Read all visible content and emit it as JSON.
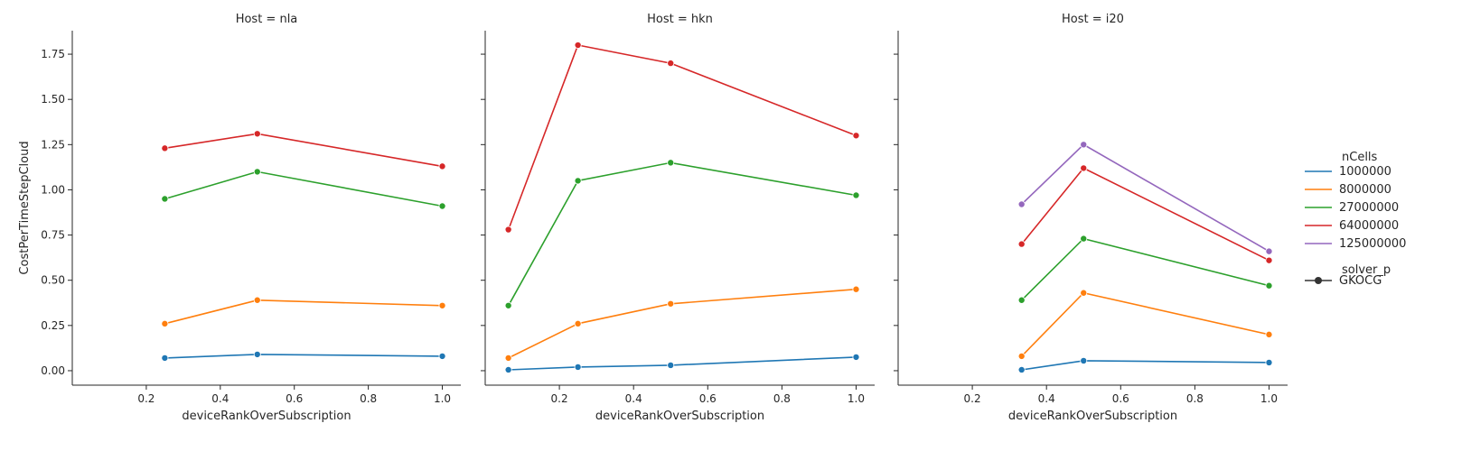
{
  "figure": {
    "legend_title": "nCells",
    "legend_style_title": "solver_p",
    "legend_placement": "right",
    "colors": [
      "#1f77b4",
      "#ff7f0e",
      "#2ca02c",
      "#d62728",
      "#9467bd"
    ]
  },
  "chart_data": [
    {
      "type": "line",
      "title": "Host = nla",
      "xlabel": "deviceRankOverSubscription",
      "ylabel": "CostPerTimeStepCloud",
      "xlim": [
        0.0,
        1.05
      ],
      "ylim": [
        -0.08,
        1.88
      ],
      "xticks": [
        0.2,
        0.4,
        0.6,
        0.8,
        1.0
      ],
      "xtick_labels": [
        "0.2",
        "0.4",
        "0.6",
        "0.8",
        "1.0"
      ],
      "yticks": [
        0.0,
        0.25,
        0.5,
        0.75,
        1.0,
        1.25,
        1.5,
        1.75
      ],
      "ytick_labels": [
        "0.00",
        "0.25",
        "0.50",
        "0.75",
        "1.00",
        "1.25",
        "1.50",
        "1.75"
      ],
      "grid": false,
      "series": [
        {
          "name": "1000000",
          "x": [
            0.25,
            0.5,
            1.0
          ],
          "y": [
            0.07,
            0.09,
            0.08
          ]
        },
        {
          "name": "8000000",
          "x": [
            0.25,
            0.5,
            1.0
          ],
          "y": [
            0.26,
            0.39,
            0.36
          ]
        },
        {
          "name": "27000000",
          "x": [
            0.25,
            0.5,
            1.0
          ],
          "y": [
            0.95,
            1.1,
            0.91
          ]
        },
        {
          "name": "64000000",
          "x": [
            0.25,
            0.5,
            1.0
          ],
          "y": [
            1.23,
            1.31,
            1.13
          ]
        }
      ]
    },
    {
      "type": "line",
      "title": "Host = hkn",
      "xlabel": "deviceRankOverSubscription",
      "ylabel": "",
      "xlim": [
        0.0,
        1.05
      ],
      "ylim": [
        -0.08,
        1.88
      ],
      "xticks": [
        0.2,
        0.4,
        0.6,
        0.8,
        1.0
      ],
      "xtick_labels": [
        "0.2",
        "0.4",
        "0.6",
        "0.8",
        "1.0"
      ],
      "yticks": [
        0.0,
        0.25,
        0.5,
        0.75,
        1.0,
        1.25,
        1.5,
        1.75
      ],
      "ytick_labels": [
        "",
        "",
        "",
        "",
        "",
        "",
        "",
        ""
      ],
      "grid": false,
      "series": [
        {
          "name": "1000000",
          "x": [
            0.0625,
            0.25,
            0.5,
            1.0
          ],
          "y": [
            0.005,
            0.02,
            0.03,
            0.075
          ]
        },
        {
          "name": "8000000",
          "x": [
            0.0625,
            0.25,
            0.5,
            1.0
          ],
          "y": [
            0.07,
            0.26,
            0.37,
            0.45
          ]
        },
        {
          "name": "27000000",
          "x": [
            0.0625,
            0.25,
            0.5,
            1.0
          ],
          "y": [
            0.36,
            1.05,
            1.15,
            0.97
          ]
        },
        {
          "name": "64000000",
          "x": [
            0.0625,
            0.25,
            0.5,
            1.0
          ],
          "y": [
            0.78,
            1.8,
            1.7,
            1.3
          ]
        }
      ]
    },
    {
      "type": "line",
      "title": "Host = i20",
      "xlabel": "deviceRankOverSubscription",
      "ylabel": "",
      "xlim": [
        0.0,
        1.05
      ],
      "ylim": [
        -0.08,
        1.88
      ],
      "xticks": [
        0.2,
        0.4,
        0.6,
        0.8,
        1.0
      ],
      "xtick_labels": [
        "0.2",
        "0.4",
        "0.6",
        "0.8",
        "1.0"
      ],
      "yticks": [
        0.0,
        0.25,
        0.5,
        0.75,
        1.0,
        1.25,
        1.5,
        1.75
      ],
      "ytick_labels": [
        "",
        "",
        "",
        "",
        "",
        "",
        "",
        ""
      ],
      "grid": false,
      "series": [
        {
          "name": "1000000",
          "x": [
            0.333,
            0.5,
            1.0
          ],
          "y": [
            0.005,
            0.055,
            0.045
          ]
        },
        {
          "name": "8000000",
          "x": [
            0.333,
            0.5,
            1.0
          ],
          "y": [
            0.08,
            0.43,
            0.2
          ]
        },
        {
          "name": "27000000",
          "x": [
            0.333,
            0.5,
            1.0
          ],
          "y": [
            0.39,
            0.73,
            0.47
          ]
        },
        {
          "name": "64000000",
          "x": [
            0.333,
            0.5,
            1.0
          ],
          "y": [
            0.7,
            1.12,
            0.61
          ]
        },
        {
          "name": "125000000",
          "x": [
            0.333,
            0.5,
            1.0
          ],
          "y": [
            0.92,
            1.25,
            0.66
          ]
        }
      ]
    }
  ],
  "legend": {
    "entries": [
      "1000000",
      "8000000",
      "27000000",
      "64000000",
      "125000000"
    ],
    "style_entries": [
      "GKOCG"
    ]
  }
}
